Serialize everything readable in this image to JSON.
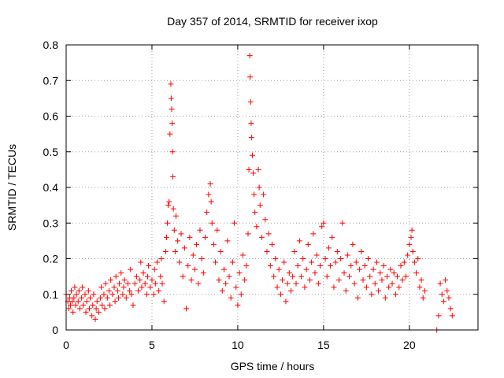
{
  "chart_data": {
    "type": "scatter",
    "title": "Day 357 of 2014, SRMTID for receiver ixop",
    "xlabel": "GPS time / hours",
    "ylabel": "SRMTID / TECUs",
    "xlim": [
      0,
      24
    ],
    "ylim": [
      0,
      0.8
    ],
    "xticks": [
      0,
      5,
      10,
      15,
      20
    ],
    "yticks": [
      0,
      0.1,
      0.2,
      0.3,
      0.4,
      0.5,
      0.6,
      0.7,
      0.8
    ],
    "xtick_labels": [
      "0",
      "5",
      "10",
      "15",
      "20"
    ],
    "ytick_labels": [
      "0",
      "0.1",
      "0.2",
      "0.3",
      "0.4",
      "0.5",
      "0.6",
      "0.7",
      "0.8"
    ],
    "grid": true,
    "marker": "plus",
    "color": "#ff0000",
    "series": [
      {
        "name": "SRMTID",
        "points": [
          [
            0.0,
            0.1
          ],
          [
            0.1,
            0.08
          ],
          [
            0.15,
            0.06
          ],
          [
            0.2,
            0.09
          ],
          [
            0.25,
            0.07
          ],
          [
            0.3,
            0.11
          ],
          [
            0.35,
            0.08
          ],
          [
            0.4,
            0.05
          ],
          [
            0.45,
            0.09
          ],
          [
            0.5,
            0.12
          ],
          [
            0.55,
            0.07
          ],
          [
            0.6,
            0.1
          ],
          [
            0.7,
            0.08
          ],
          [
            0.75,
            0.11
          ],
          [
            0.8,
            0.06
          ],
          [
            0.9,
            0.09
          ],
          [
            0.95,
            0.12
          ],
          [
            1.0,
            0.07
          ],
          [
            1.1,
            0.1
          ],
          [
            1.15,
            0.05
          ],
          [
            1.2,
            0.08
          ],
          [
            1.3,
            0.11
          ],
          [
            1.35,
            0.06
          ],
          [
            1.4,
            0.09
          ],
          [
            1.5,
            0.04
          ],
          [
            1.55,
            0.07
          ],
          [
            1.6,
            0.1
          ],
          [
            1.7,
            0.03
          ],
          [
            1.75,
            0.06
          ],
          [
            1.8,
            0.08
          ],
          [
            1.9,
            0.05
          ],
          [
            2.0,
            0.09
          ],
          [
            2.05,
            0.12
          ],
          [
            2.1,
            0.07
          ],
          [
            2.2,
            0.1
          ],
          [
            2.25,
            0.06
          ],
          [
            2.3,
            0.13
          ],
          [
            2.4,
            0.09
          ],
          [
            2.5,
            0.11
          ],
          [
            2.55,
            0.07
          ],
          [
            2.6,
            0.14
          ],
          [
            2.7,
            0.1
          ],
          [
            2.8,
            0.12
          ],
          [
            2.85,
            0.08
          ],
          [
            2.9,
            0.15
          ],
          [
            3.0,
            0.11
          ],
          [
            3.05,
            0.09
          ],
          [
            3.1,
            0.13
          ],
          [
            3.2,
            0.16
          ],
          [
            3.3,
            0.1
          ],
          [
            3.35,
            0.12
          ],
          [
            3.4,
            0.14
          ],
          [
            3.5,
            0.09
          ],
          [
            3.6,
            0.13
          ],
          [
            3.7,
            0.11
          ],
          [
            3.75,
            0.17
          ],
          [
            3.8,
            0.1
          ],
          [
            3.9,
            0.07
          ],
          [
            4.0,
            0.13
          ],
          [
            4.1,
            0.15
          ],
          [
            4.2,
            0.11
          ],
          [
            4.3,
            0.14
          ],
          [
            4.35,
            0.19
          ],
          [
            4.4,
            0.12
          ],
          [
            4.5,
            0.16
          ],
          [
            4.6,
            0.13
          ],
          [
            4.7,
            0.1
          ],
          [
            4.75,
            0.15
          ],
          [
            4.8,
            0.18
          ],
          [
            4.9,
            0.12
          ],
          [
            5.0,
            0.14
          ],
          [
            5.1,
            0.1
          ],
          [
            5.15,
            0.17
          ],
          [
            5.2,
            0.13
          ],
          [
            5.3,
            0.19
          ],
          [
            5.4,
            0.11
          ],
          [
            5.5,
            0.15
          ],
          [
            5.55,
            0.2
          ],
          [
            5.6,
            0.13
          ],
          [
            5.7,
            0.08
          ],
          [
            5.8,
            0.22
          ],
          [
            5.85,
            0.26
          ],
          [
            5.9,
            0.3
          ],
          [
            5.95,
            0.35
          ],
          [
            6.0,
            0.36
          ],
          [
            6.05,
            0.55
          ],
          [
            6.1,
            0.69
          ],
          [
            6.12,
            0.65
          ],
          [
            6.15,
            0.62
          ],
          [
            6.18,
            0.58
          ],
          [
            6.2,
            0.5
          ],
          [
            6.22,
            0.43
          ],
          [
            6.25,
            0.34
          ],
          [
            6.3,
            0.28
          ],
          [
            6.35,
            0.22
          ],
          [
            6.4,
            0.32
          ],
          [
            6.5,
            0.25
          ],
          [
            6.6,
            0.19
          ],
          [
            6.7,
            0.27
          ],
          [
            6.8,
            0.15
          ],
          [
            6.9,
            0.23
          ],
          [
            7.0,
            0.06
          ],
          [
            7.1,
            0.18
          ],
          [
            7.2,
            0.26
          ],
          [
            7.3,
            0.14
          ],
          [
            7.4,
            0.21
          ],
          [
            7.5,
            0.17
          ],
          [
            7.6,
            0.24
          ],
          [
            7.7,
            0.13
          ],
          [
            7.8,
            0.28
          ],
          [
            7.9,
            0.2
          ],
          [
            8.0,
            0.16
          ],
          [
            8.1,
            0.26
          ],
          [
            8.2,
            0.33
          ],
          [
            8.3,
            0.38
          ],
          [
            8.4,
            0.41
          ],
          [
            8.45,
            0.36
          ],
          [
            8.5,
            0.3
          ],
          [
            8.6,
            0.24
          ],
          [
            8.7,
            0.19
          ],
          [
            8.8,
            0.28
          ],
          [
            8.9,
            0.14
          ],
          [
            9.0,
            0.22
          ],
          [
            9.1,
            0.11
          ],
          [
            9.2,
            0.17
          ],
          [
            9.3,
            0.13
          ],
          [
            9.4,
            0.25
          ],
          [
            9.5,
            0.15
          ],
          [
            9.6,
            0.09
          ],
          [
            9.7,
            0.19
          ],
          [
            9.8,
            0.3
          ],
          [
            9.9,
            0.12
          ],
          [
            10.0,
            0.07
          ],
          [
            10.1,
            0.16
          ],
          [
            10.2,
            0.1
          ],
          [
            10.3,
            0.21
          ],
          [
            10.4,
            0.14
          ],
          [
            10.5,
            0.18
          ],
          [
            10.6,
            0.27
          ],
          [
            10.65,
            0.45
          ],
          [
            10.7,
            0.77
          ],
          [
            10.72,
            0.71
          ],
          [
            10.75,
            0.64
          ],
          [
            10.78,
            0.58
          ],
          [
            10.8,
            0.54
          ],
          [
            10.85,
            0.49
          ],
          [
            10.9,
            0.44
          ],
          [
            10.95,
            0.38
          ],
          [
            11.0,
            0.33
          ],
          [
            11.1,
            0.29
          ],
          [
            11.2,
            0.45
          ],
          [
            11.25,
            0.4
          ],
          [
            11.3,
            0.35
          ],
          [
            11.4,
            0.26
          ],
          [
            11.5,
            0.38
          ],
          [
            11.6,
            0.31
          ],
          [
            11.7,
            0.22
          ],
          [
            11.8,
            0.27
          ],
          [
            11.9,
            0.18
          ],
          [
            12.0,
            0.24
          ],
          [
            12.1,
            0.15
          ],
          [
            12.2,
            0.2
          ],
          [
            12.3,
            0.12
          ],
          [
            12.4,
            0.17
          ],
          [
            12.5,
            0.1
          ],
          [
            12.6,
            0.14
          ],
          [
            12.7,
            0.19
          ],
          [
            12.8,
            0.08
          ],
          [
            12.9,
            0.13
          ],
          [
            13.0,
            0.16
          ],
          [
            13.1,
            0.11
          ],
          [
            13.2,
            0.15
          ],
          [
            13.3,
            0.22
          ],
          [
            13.4,
            0.13
          ],
          [
            13.5,
            0.18
          ],
          [
            13.6,
            0.25
          ],
          [
            13.7,
            0.15
          ],
          [
            13.8,
            0.2
          ],
          [
            13.9,
            0.12
          ],
          [
            14.0,
            0.17
          ],
          [
            14.1,
            0.24
          ],
          [
            14.2,
            0.14
          ],
          [
            14.3,
            0.19
          ],
          [
            14.4,
            0.27
          ],
          [
            14.5,
            0.16
          ],
          [
            14.6,
            0.21
          ],
          [
            14.7,
            0.13
          ],
          [
            14.8,
            0.18
          ],
          [
            14.9,
            0.29
          ],
          [
            15.0,
            0.3
          ],
          [
            15.1,
            0.2
          ],
          [
            15.2,
            0.15
          ],
          [
            15.3,
            0.23
          ],
          [
            15.4,
            0.18
          ],
          [
            15.5,
            0.26
          ],
          [
            15.6,
            0.12
          ],
          [
            15.7,
            0.19
          ],
          [
            15.8,
            0.22
          ],
          [
            15.9,
            0.14
          ],
          [
            16.0,
            0.2
          ],
          [
            16.1,
            0.3
          ],
          [
            16.2,
            0.16
          ],
          [
            16.3,
            0.11
          ],
          [
            16.4,
            0.21
          ],
          [
            16.5,
            0.15
          ],
          [
            16.6,
            0.18
          ],
          [
            16.7,
            0.24
          ],
          [
            16.8,
            0.13
          ],
          [
            16.9,
            0.19
          ],
          [
            17.0,
            0.09
          ],
          [
            17.1,
            0.17
          ],
          [
            17.2,
            0.22
          ],
          [
            17.3,
            0.14
          ],
          [
            17.4,
            0.18
          ],
          [
            17.5,
            0.12
          ],
          [
            17.6,
            0.2
          ],
          [
            17.7,
            0.15
          ],
          [
            17.8,
            0.1
          ],
          [
            17.9,
            0.17
          ],
          [
            18.0,
            0.13
          ],
          [
            18.1,
            0.19
          ],
          [
            18.2,
            0.11
          ],
          [
            18.3,
            0.16
          ],
          [
            18.4,
            0.14
          ],
          [
            18.5,
            0.18
          ],
          [
            18.6,
            0.09
          ],
          [
            18.7,
            0.15
          ],
          [
            18.8,
            0.12
          ],
          [
            18.9,
            0.17
          ],
          [
            19.0,
            0.13
          ],
          [
            19.1,
            0.16
          ],
          [
            19.2,
            0.1
          ],
          [
            19.3,
            0.15
          ],
          [
            19.4,
            0.12
          ],
          [
            19.5,
            0.18
          ],
          [
            19.6,
            0.14
          ],
          [
            19.7,
            0.19
          ],
          [
            19.8,
            0.15
          ],
          [
            19.9,
            0.21
          ],
          [
            20.0,
            0.24
          ],
          [
            20.1,
            0.26
          ],
          [
            20.15,
            0.28
          ],
          [
            20.2,
            0.22
          ],
          [
            20.3,
            0.19
          ],
          [
            20.4,
            0.16
          ],
          [
            20.5,
            0.2
          ],
          [
            20.6,
            0.12
          ],
          [
            20.7,
            0.14
          ],
          [
            20.8,
            0.09
          ],
          [
            20.9,
            0.11
          ],
          [
            21.6,
            0.0
          ],
          [
            21.7,
            0.04
          ],
          [
            21.8,
            0.13
          ],
          [
            21.9,
            0.1
          ],
          [
            22.0,
            0.08
          ],
          [
            22.1,
            0.14
          ],
          [
            22.2,
            0.11
          ],
          [
            22.3,
            0.09
          ],
          [
            22.4,
            0.06
          ],
          [
            22.5,
            0.04
          ]
        ]
      }
    ]
  }
}
